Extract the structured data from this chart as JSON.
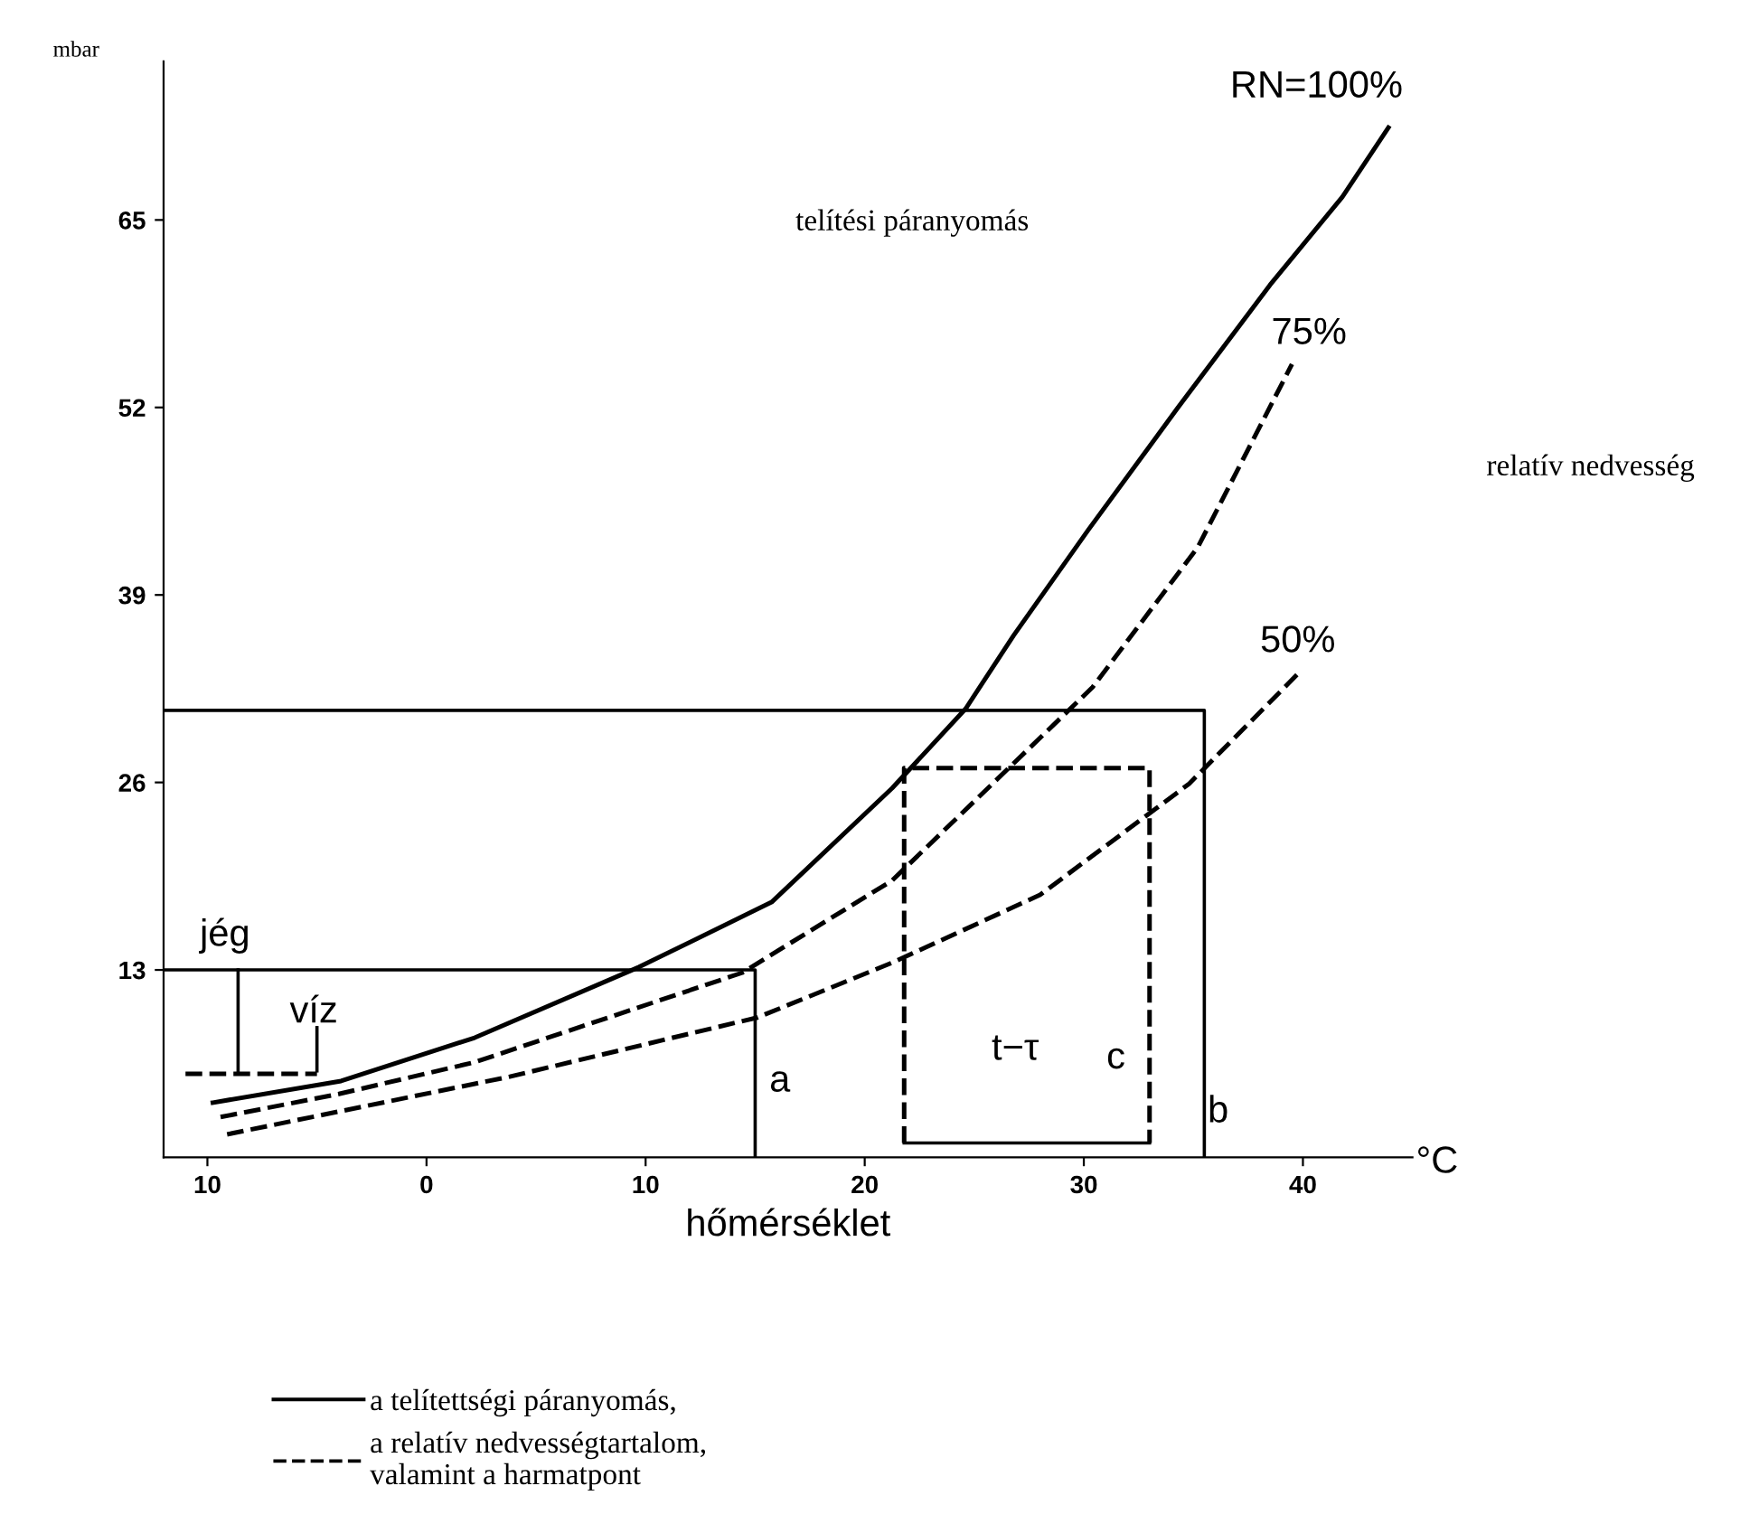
{
  "chart_data": {
    "type": "line",
    "xlabel": "hőmérséklet",
    "ylabel": "mbar",
    "xlim": [
      -12,
      45
    ],
    "ylim": [
      0,
      76
    ],
    "xticks": [
      {
        "value": -10,
        "label": "10"
      },
      0,
      10,
      20,
      30,
      40
    ],
    "yticks": [
      13,
      26,
      39,
      52,
      65
    ],
    "grid": false,
    "marker": "none",
    "legend": "bottom",
    "series": [
      {
        "name": "a telítettségi páranyomás,",
        "color": "#000000",
        "line_style": "solid",
        "x": [
          -9.75,
          -3.9,
          2.2,
          9.7,
          15.75,
          21.25,
          24.6,
          26.8,
          30.2,
          34.3,
          38.5,
          41.8,
          43.9
        ],
        "values": [
          3.8,
          5.3,
          8.3,
          13.2,
          17.7,
          25.6,
          31.1,
          36.2,
          43.5,
          52,
          60.5,
          66.6,
          71.4
        ]
      },
      {
        "name": "a relatív nedvességtartalom,\nvalamint a harmatpont",
        "color": "#000000",
        "line_style": "dashed",
        "x": [
          -9.4,
          -4,
          2.2,
          14.4,
          21.25,
          30.4,
          35.2,
          39.5
        ],
        "values": [
          2.8,
          4.4,
          6.6,
          12.8,
          19.2,
          32.6,
          42.3,
          55
        ]
      },
      {
        "color": "#000000",
        "line_style": "dashed",
        "x": [
          -9.1,
          3.8,
          15.1,
          21.25,
          28,
          34.8,
          39.75
        ],
        "values": [
          1.6,
          5.6,
          9.7,
          13.5,
          18.2,
          25.9,
          33.5
        ]
      },
      {
        "color": "#000000",
        "line_style": "solid",
        "x": [
          35.5,
          35.5,
          -12
        ],
        "values": [
          0,
          31,
          31
        ]
      },
      {
        "color": "#000000",
        "line_style": "solid",
        "x": [
          15,
          15,
          -12
        ],
        "values": [
          0,
          13,
          13
        ]
      },
      {
        "color": "#000000",
        "line_style": "dashed",
        "x": [
          21.8,
          21.8,
          33,
          33
        ],
        "values": [
          1,
          27,
          27,
          1
        ]
      },
      {
        "color": "#000000",
        "line_style": "solid",
        "x": [
          21.8,
          33
        ],
        "values": [
          1,
          1
        ]
      },
      {
        "color": "#000000",
        "line_style": "solid",
        "x": [
          -8.6,
          -8.6
        ],
        "values": [
          13,
          6
        ]
      },
      {
        "color": "#000000",
        "line_style": "solid",
        "x": [
          -5,
          -5
        ],
        "values": [
          9,
          6
        ]
      },
      {
        "color": "#000000",
        "line_style": "dashed",
        "x": [
          -11,
          -5
        ],
        "values": [
          5.8,
          5.8
        ]
      }
    ],
    "annotations": [
      "RN=100%",
      "75%",
      "50%",
      "telítési páranyomás",
      "jég",
      "víz",
      "a",
      "b",
      "c",
      "t−τ",
      "relatív nedvesség",
      "°C"
    ]
  }
}
